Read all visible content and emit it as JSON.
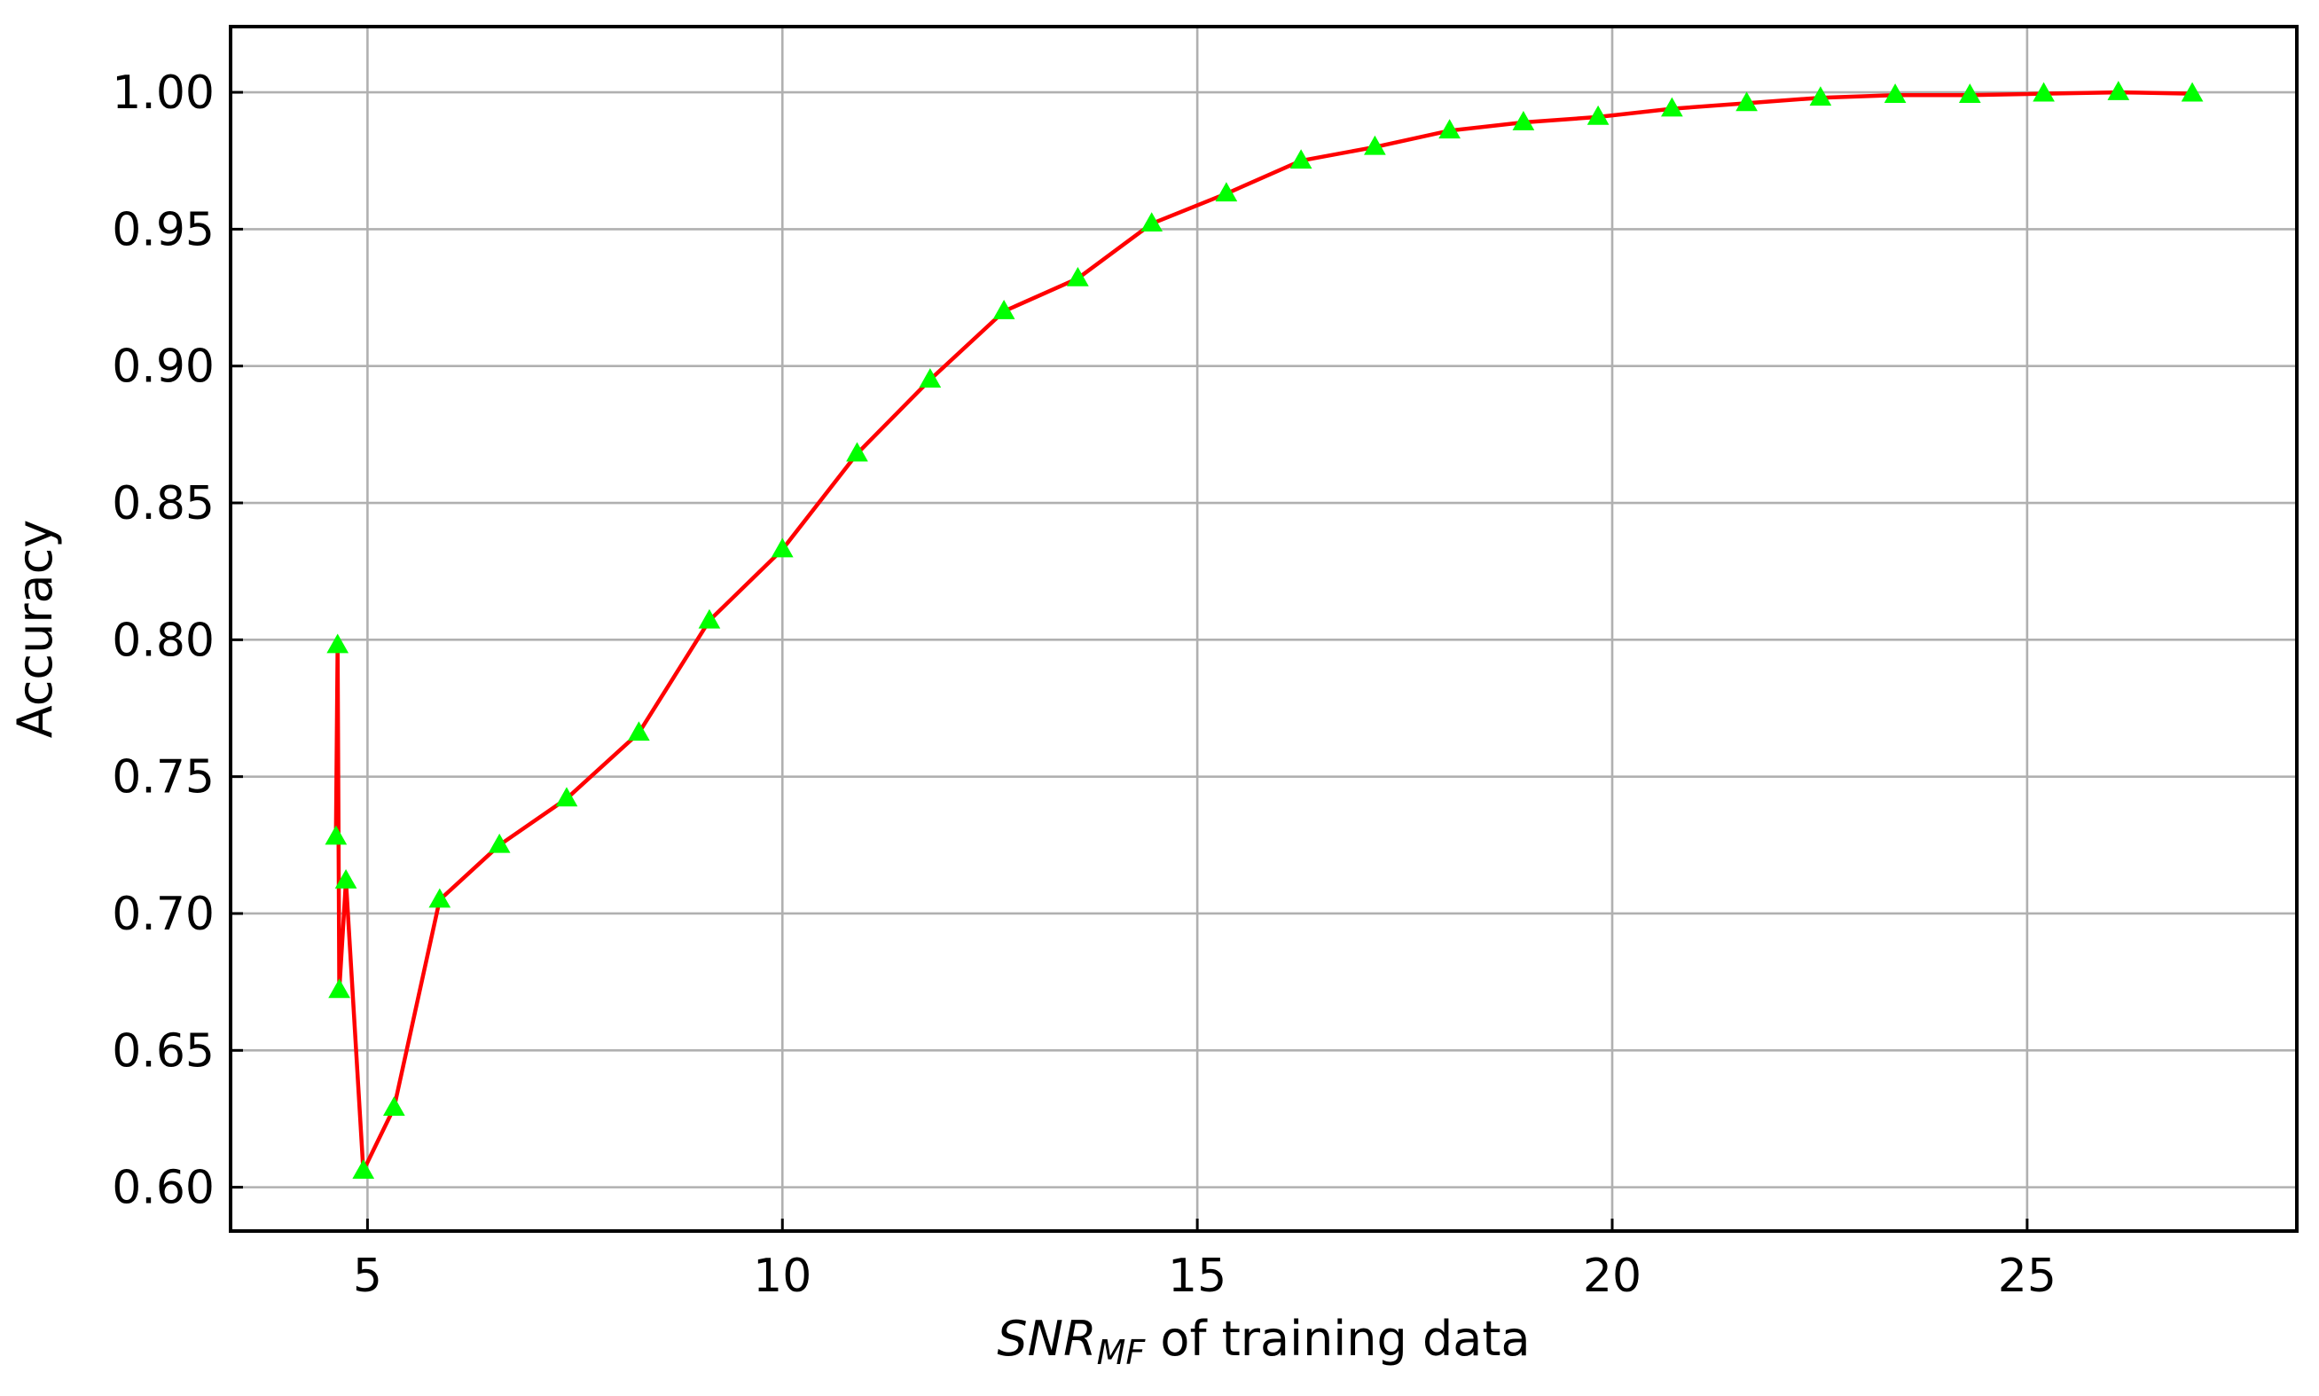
{
  "chart_data": {
    "type": "line",
    "title": "",
    "xlabel": {
      "main": "SNR",
      "subscript": "MF",
      "suffix": " of training data"
    },
    "ylabel": "Accuracy",
    "xlim": [
      3.35,
      28.25
    ],
    "ylim": [
      0.584,
      1.024
    ],
    "xticks": [
      5,
      10,
      15,
      20,
      25
    ],
    "xtick_labels": [
      "5",
      "10",
      "15",
      "20",
      "25"
    ],
    "yticks": [
      0.6,
      0.65,
      0.7,
      0.75,
      0.8,
      0.85,
      0.9,
      0.95,
      1.0
    ],
    "ytick_labels": [
      "0.60",
      "0.65",
      "0.70",
      "0.75",
      "0.80",
      "0.85",
      "0.90",
      "0.95",
      "1.00"
    ],
    "grid": true,
    "series": [
      {
        "line_color": "#ff0000",
        "marker": "triangle",
        "marker_color": "#00ff00",
        "x": [
          4.62,
          4.64,
          4.66,
          4.74,
          4.95,
          5.32,
          5.87,
          6.59,
          7.4,
          8.27,
          9.12,
          10.0,
          10.9,
          11.78,
          12.67,
          13.56,
          14.45,
          15.35,
          16.25,
          17.14,
          18.04,
          18.93,
          19.83,
          20.72,
          21.62,
          22.51,
          23.41,
          24.31,
          25.2,
          26.1,
          26.99
        ],
        "y": [
          0.728,
          0.798,
          0.672,
          0.712,
          0.606,
          0.629,
          0.705,
          0.725,
          0.742,
          0.766,
          0.807,
          0.833,
          0.868,
          0.895,
          0.92,
          0.932,
          0.952,
          0.963,
          0.975,
          0.98,
          0.986,
          0.989,
          0.991,
          0.994,
          0.996,
          0.998,
          0.999,
          0.999,
          0.9995,
          1.0,
          0.9995
        ]
      }
    ]
  }
}
